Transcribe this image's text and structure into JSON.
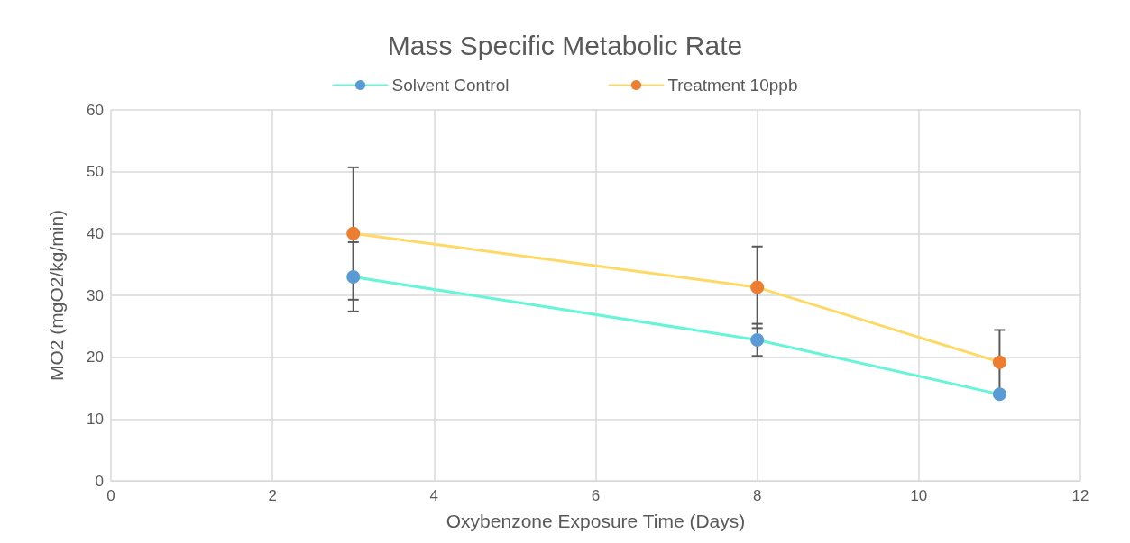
{
  "chart_data": {
    "type": "line",
    "title": "Mass Specific Metabolic Rate",
    "xlabel": "Oxybenzone Exposure Time (Days)",
    "ylabel": "MO2 (mgO2/kg/min)",
    "x": [
      3,
      8,
      11
    ],
    "series": [
      {
        "name": "Solvent Control",
        "color": "#66f5d6",
        "colors": [
          "#5b9bd5",
          "#5b9bd5",
          "#5b9bd5"
        ],
        "values": [
          33,
          22.8,
          14.0
        ],
        "errors": [
          5.6,
          2.6,
          null
        ]
      },
      {
        "name": "Treatment 10ppb",
        "color": "#ffd966",
        "colors": [
          "#ed7d31",
          "#ed7d31",
          "#ed7d31"
        ],
        "values": [
          40,
          31.3,
          19.2
        ],
        "errors": [
          10.7,
          6.6,
          5.2
        ]
      }
    ],
    "xlim": [
      0,
      12
    ],
    "xticks": [
      0,
      2,
      4,
      6,
      8,
      10,
      12
    ],
    "ylim": [
      0,
      60
    ],
    "yticks": [
      0,
      10,
      20,
      30,
      40,
      50,
      60
    ],
    "grid": true,
    "legend": "top",
    "marker": "circle",
    "line_style": "solid"
  }
}
